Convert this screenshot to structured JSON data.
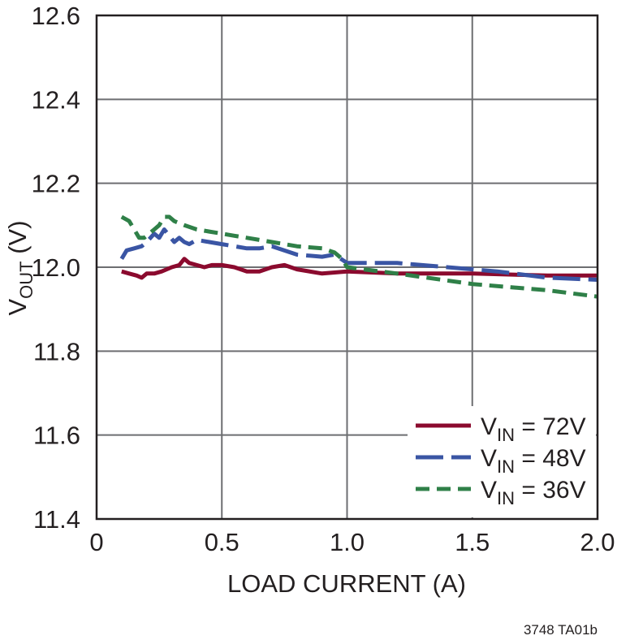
{
  "chart_data": {
    "type": "line",
    "xlabel": "LOAD CURRENT (A)",
    "ylabel": {
      "main": "V",
      "sub": "OUT",
      "unit": " (V)"
    },
    "xlim": [
      0,
      2.0
    ],
    "ylim": [
      11.4,
      12.6
    ],
    "x_ticks": [
      0,
      0.5,
      1.0,
      1.5,
      2.0
    ],
    "x_tick_labels": [
      "0",
      "0.5",
      "1.0",
      "1.5",
      "2.0"
    ],
    "y_ticks": [
      11.4,
      11.6,
      11.8,
      12.0,
      12.2,
      12.4,
      12.6
    ],
    "y_tick_labels": [
      "11.4",
      "11.6",
      "11.8",
      "12.0",
      "12.2",
      "12.4",
      "12.6"
    ],
    "grid": true,
    "legend_position": "bottom-right",
    "series": [
      {
        "label_main": "V",
        "label_sub": "IN",
        "label_rest": " = 72V",
        "color": "#8b0a2e",
        "dash": "solid",
        "x": [
          0.1,
          0.13,
          0.16,
          0.18,
          0.2,
          0.23,
          0.26,
          0.3,
          0.33,
          0.35,
          0.37,
          0.4,
          0.43,
          0.46,
          0.5,
          0.55,
          0.6,
          0.65,
          0.7,
          0.75,
          0.8,
          0.9,
          1.0,
          1.2,
          1.5,
          1.8,
          2.0
        ],
        "y": [
          11.99,
          11.985,
          11.98,
          11.975,
          11.985,
          11.985,
          11.99,
          12.0,
          12.005,
          12.02,
          12.01,
          12.005,
          12.0,
          12.005,
          12.005,
          12.0,
          11.99,
          11.99,
          12.0,
          12.005,
          11.995,
          11.985,
          11.99,
          11.985,
          11.985,
          11.98,
          11.98
        ]
      },
      {
        "label_main": "V",
        "label_sub": "IN",
        "label_rest": " = 48V",
        "color": "#3a55a4",
        "dash": "long",
        "x": [
          0.1,
          0.12,
          0.15,
          0.18,
          0.2,
          0.23,
          0.25,
          0.27,
          0.29,
          0.31,
          0.33,
          0.35,
          0.37,
          0.4,
          0.45,
          0.5,
          0.55,
          0.6,
          0.65,
          0.7,
          0.8,
          0.9,
          0.95,
          1.0,
          1.2,
          1.4,
          1.6,
          1.8,
          2.0
        ],
        "y": [
          12.02,
          12.04,
          12.045,
          12.05,
          12.06,
          12.08,
          12.07,
          12.09,
          12.075,
          12.06,
          12.07,
          12.06,
          12.055,
          12.065,
          12.06,
          12.055,
          12.05,
          12.045,
          12.045,
          12.05,
          12.03,
          12.025,
          12.03,
          12.01,
          12.01,
          12.0,
          11.99,
          11.975,
          11.97
        ]
      },
      {
        "label_main": "V",
        "label_sub": "IN",
        "label_rest": " = 36V",
        "color": "#2f8048",
        "dash": "short",
        "x": [
          0.1,
          0.13,
          0.15,
          0.17,
          0.19,
          0.21,
          0.23,
          0.25,
          0.27,
          0.29,
          0.31,
          0.35,
          0.4,
          0.45,
          0.5,
          0.55,
          0.6,
          0.65,
          0.7,
          0.8,
          0.9,
          0.95,
          0.98,
          1.0,
          1.2,
          1.5,
          1.8,
          2.0
        ],
        "y": [
          12.12,
          12.11,
          12.09,
          12.07,
          12.07,
          12.08,
          12.09,
          12.1,
          12.12,
          12.12,
          12.11,
          12.1,
          12.09,
          12.085,
          12.08,
          12.075,
          12.07,
          12.065,
          12.06,
          12.05,
          12.045,
          12.035,
          12.02,
          12.0,
          11.985,
          11.96,
          11.945,
          11.93
        ]
      }
    ]
  },
  "footnote": "3748 TA01b"
}
